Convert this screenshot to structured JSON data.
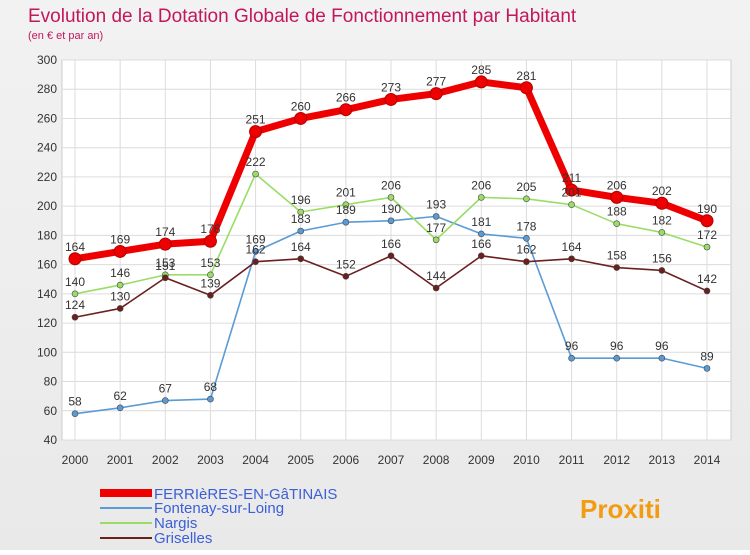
{
  "chart_data": {
    "type": "line",
    "title": "Evolution de la Dotation Globale de Fonctionnement par Habitant",
    "subtitle": "(en € et par an)",
    "x": [
      "2000",
      "2001",
      "2002",
      "2003",
      "2004",
      "2005",
      "2006",
      "2007",
      "2008",
      "2009",
      "2010",
      "2011",
      "2012",
      "2013",
      "2014"
    ],
    "ylim": [
      40,
      300
    ],
    "yticks": [
      40,
      60,
      80,
      100,
      120,
      140,
      160,
      180,
      200,
      220,
      240,
      260,
      280,
      300
    ],
    "grid": true,
    "legend_position": "bottom-left",
    "series": [
      {
        "name": "FERRIèRES-EN-GâTINAIS",
        "color": "#ee0000",
        "values": [
          164,
          169,
          174,
          176,
          251,
          260,
          266,
          273,
          277,
          285,
          281,
          211,
          206,
          202,
          190
        ]
      },
      {
        "name": "Fontenay-sur-Loing",
        "color": "#5b9bd5",
        "values": [
          58,
          62,
          67,
          68,
          169,
          183,
          189,
          190,
          193,
          181,
          178,
          96,
          96,
          96,
          89
        ]
      },
      {
        "name": "Nargis",
        "color": "#99dd66",
        "values": [
          140,
          146,
          153,
          153,
          222,
          196,
          201,
          206,
          177,
          206,
          205,
          201,
          188,
          182,
          172
        ]
      },
      {
        "name": "Griselles",
        "color": "#6b1f1f",
        "values": [
          124,
          130,
          151,
          139,
          162,
          164,
          152,
          166,
          144,
          166,
          162,
          164,
          158,
          156,
          142
        ]
      }
    ],
    "value_label_rows": [
      [
        "164",
        "169",
        "174",
        "176",
        "251",
        "260",
        "266",
        "273",
        "277",
        "285",
        "281",
        "211",
        "206",
        "202",
        "190"
      ],
      [
        "58",
        "62",
        "67",
        "68",
        "169",
        "183",
        "189",
        "190",
        "193",
        "181",
        "178",
        "96",
        "96",
        "96",
        "89"
      ],
      [
        "140",
        "146",
        "153",
        "153",
        "222",
        "196",
        "201",
        "206",
        "177",
        "206",
        "205",
        "201",
        "188",
        "182",
        "172"
      ],
      [
        "124",
        "130",
        "151",
        "139",
        "162",
        "164",
        "152",
        "166",
        "144",
        "166",
        "162",
        "164",
        "158",
        "156",
        "142"
      ]
    ]
  },
  "logo": {
    "text": "Proxiti"
  }
}
